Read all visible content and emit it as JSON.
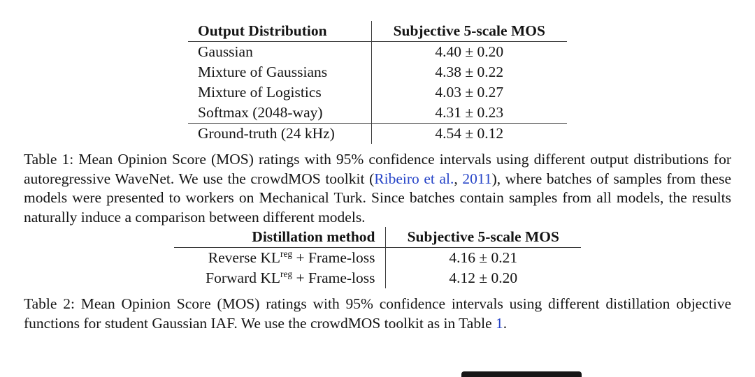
{
  "page": {
    "background": "#ffffff",
    "text_color": "#141414",
    "link_color": "#2745c8",
    "rule_color": "#3b3b3b"
  },
  "table1": {
    "col_headers": [
      "Output Distribution",
      "Subjective 5-scale MOS"
    ],
    "rows": [
      {
        "label": "Gaussian",
        "value": "4.40 ± 0.20"
      },
      {
        "label": "Mixture of Gaussians",
        "value": "4.38 ± 0.22"
      },
      {
        "label": "Mixture of Logistics",
        "value": "4.03 ± 0.27"
      },
      {
        "label": "Softmax (2048-way)",
        "value": "4.31 ± 0.23"
      }
    ],
    "baseline_row": {
      "label": "Ground-truth (24 kHz)",
      "value": "4.54 ± 0.12"
    },
    "caption": {
      "part1": "Table 1: Mean Opinion Score (MOS) ratings with 95% confidence intervals using different output distributions for autoregressive WaveNet. We use the crowdMOS toolkit (",
      "cite_author": "Ribeiro et al.",
      "part2": ", ",
      "cite_year": "2011",
      "part3": "), where batches of samples from these models were presented to workers on Mechanical Turk. Since batches contain samples from all models, the results naturally induce a comparison between different models."
    }
  },
  "table2": {
    "col_headers": [
      "Distillation method",
      "Subjective 5-scale MOS"
    ],
    "rows": [
      {
        "method_base": "Reverse KL",
        "method_sup": "reg",
        "method_rest": " + Frame-loss",
        "value": "4.16 ± 0.21"
      },
      {
        "method_base": "Forward KL",
        "method_sup": "reg",
        "method_rest": " + Frame-loss",
        "value": "4.12 ± 0.20"
      }
    ],
    "caption": {
      "part1": "Table 2: Mean Opinion Score (MOS) ratings with 95% confidence intervals using different distillation objective functions for student Gaussian IAF. We use the crowdMOS toolkit as in Table ",
      "table_ref": "1",
      "part2": "."
    }
  }
}
